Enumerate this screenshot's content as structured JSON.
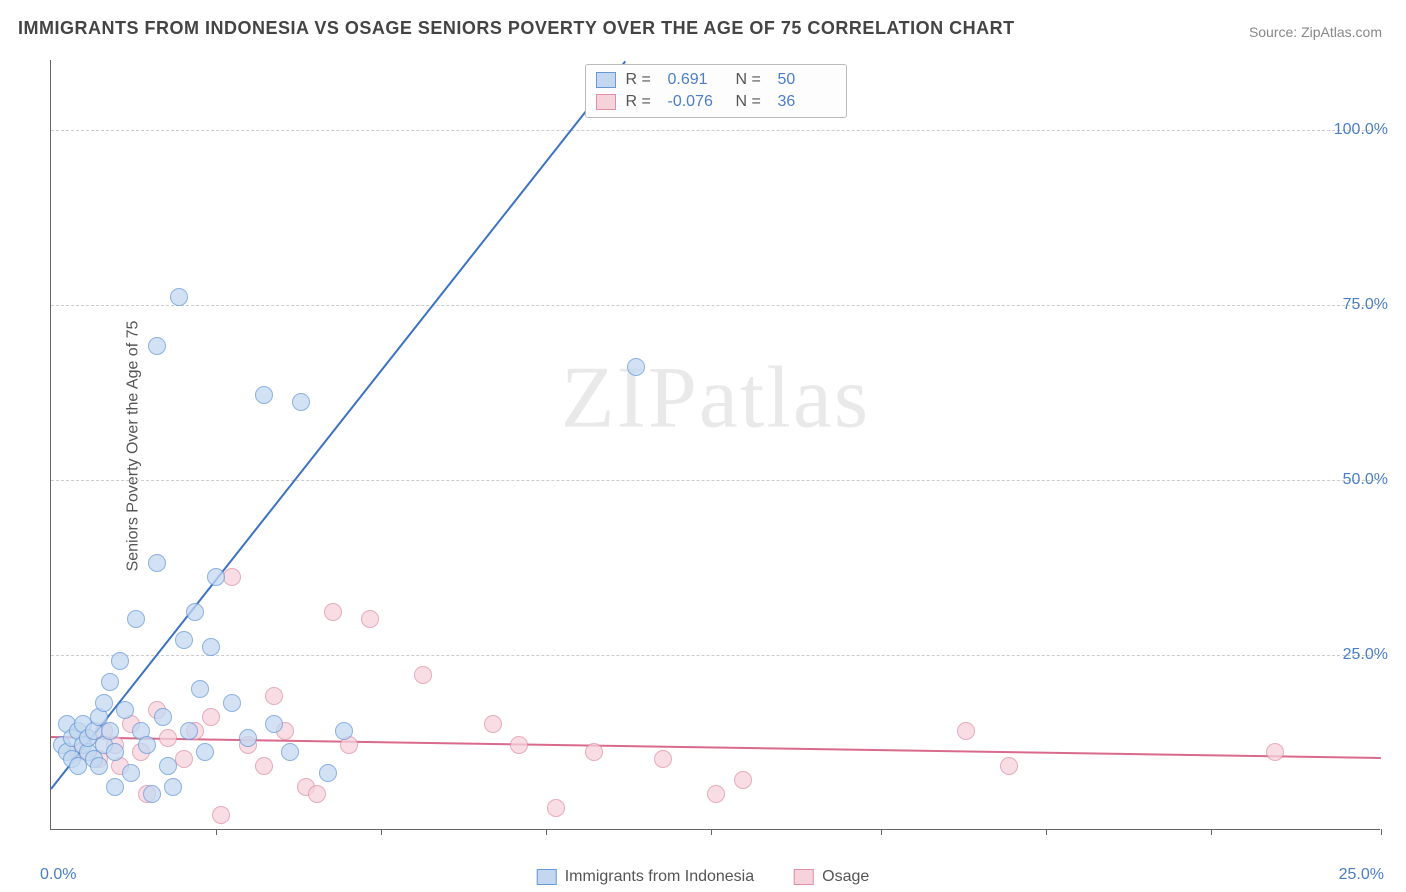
{
  "title": "IMMIGRANTS FROM INDONESIA VS OSAGE SENIORS POVERTY OVER THE AGE OF 75 CORRELATION CHART",
  "source": "Source: ZipAtlas.com",
  "y_axis_label": "Seniors Poverty Over the Age of 75",
  "watermark": "ZIPatlas",
  "chart": {
    "type": "scatter",
    "xlim": [
      0,
      25
    ],
    "ylim": [
      0,
      110
    ],
    "y_ticks": [
      25,
      50,
      75,
      100
    ],
    "y_tick_labels": [
      "25.0%",
      "50.0%",
      "75.0%",
      "100.0%"
    ],
    "x_ticks": [
      3.1,
      6.2,
      9.3,
      12.4,
      15.6,
      18.7,
      21.8,
      25.0
    ],
    "x_tick_labels": {
      "min": "0.0%",
      "max": "25.0%"
    },
    "background_color": "#ffffff",
    "grid_color": "#cccccc",
    "axis_color": "#666666",
    "tick_label_color": "#4a7ec9",
    "title_fontsize": 18,
    "label_fontsize": 16,
    "marker_radius": 9,
    "series": [
      {
        "name": "Immigrants from Indonesia",
        "fill": "#c3d8f0",
        "stroke": "#6699d8",
        "trend_color": "#3b72c4",
        "r": 0.691,
        "n": 50,
        "trend": {
          "x1": 0.0,
          "y1": 6.0,
          "x2": 10.8,
          "y2": 110.0
        },
        "points": [
          [
            0.2,
            12
          ],
          [
            0.3,
            15
          ],
          [
            0.3,
            11
          ],
          [
            0.4,
            13
          ],
          [
            0.4,
            10
          ],
          [
            0.5,
            14
          ],
          [
            0.5,
            9
          ],
          [
            0.6,
            12
          ],
          [
            0.6,
            15
          ],
          [
            0.7,
            11
          ],
          [
            0.7,
            13
          ],
          [
            0.8,
            10
          ],
          [
            0.8,
            14
          ],
          [
            0.9,
            16
          ],
          [
            0.9,
            9
          ],
          [
            1.0,
            18
          ],
          [
            1.0,
            12
          ],
          [
            1.1,
            21
          ],
          [
            1.1,
            14
          ],
          [
            1.2,
            11
          ],
          [
            1.2,
            6
          ],
          [
            1.3,
            24
          ],
          [
            1.4,
            17
          ],
          [
            1.5,
            8
          ],
          [
            1.6,
            30
          ],
          [
            1.7,
            14
          ],
          [
            1.8,
            12
          ],
          [
            1.9,
            5
          ],
          [
            2.0,
            38
          ],
          [
            2.1,
            16
          ],
          [
            2.2,
            9
          ],
          [
            2.3,
            6
          ],
          [
            2.5,
            27
          ],
          [
            2.6,
            14
          ],
          [
            2.7,
            31
          ],
          [
            2.8,
            20
          ],
          [
            2.9,
            11
          ],
          [
            3.0,
            26
          ],
          [
            3.1,
            36
          ],
          [
            3.4,
            18
          ],
          [
            3.7,
            13
          ],
          [
            4.0,
            62
          ],
          [
            4.2,
            15
          ],
          [
            4.5,
            11
          ],
          [
            4.7,
            61
          ],
          [
            5.2,
            8
          ],
          [
            5.5,
            14
          ],
          [
            2.4,
            76
          ],
          [
            2.0,
            69
          ],
          [
            11.0,
            66
          ]
        ]
      },
      {
        "name": "Osage",
        "fill": "#f6d2db",
        "stroke": "#e08fa6",
        "trend_color": "#d96a8c",
        "r": -0.076,
        "n": 36,
        "trend": {
          "x1": 0.0,
          "y1": 13.5,
          "x2": 25.0,
          "y2": 10.5
        },
        "points": [
          [
            0.5,
            11
          ],
          [
            0.7,
            13
          ],
          [
            0.9,
            10
          ],
          [
            1.0,
            14
          ],
          [
            1.2,
            12
          ],
          [
            1.3,
            9
          ],
          [
            1.5,
            15
          ],
          [
            1.7,
            11
          ],
          [
            1.8,
            5
          ],
          [
            2.0,
            17
          ],
          [
            2.2,
            13
          ],
          [
            2.5,
            10
          ],
          [
            2.7,
            14
          ],
          [
            3.0,
            16
          ],
          [
            3.2,
            2
          ],
          [
            3.4,
            36
          ],
          [
            3.7,
            12
          ],
          [
            4.0,
            9
          ],
          [
            4.2,
            19
          ],
          [
            4.4,
            14
          ],
          [
            4.8,
            6
          ],
          [
            5.0,
            5
          ],
          [
            5.3,
            31
          ],
          [
            5.6,
            12
          ],
          [
            6.0,
            30
          ],
          [
            7.0,
            22
          ],
          [
            8.3,
            15
          ],
          [
            8.8,
            12
          ],
          [
            9.5,
            3
          ],
          [
            10.2,
            11
          ],
          [
            11.5,
            10
          ],
          [
            12.5,
            5
          ],
          [
            13.0,
            7
          ],
          [
            17.2,
            14
          ],
          [
            18.0,
            9
          ],
          [
            23.0,
            11
          ]
        ]
      }
    ]
  },
  "legend_top": {
    "r_label": "R =",
    "n_label": "N ="
  }
}
